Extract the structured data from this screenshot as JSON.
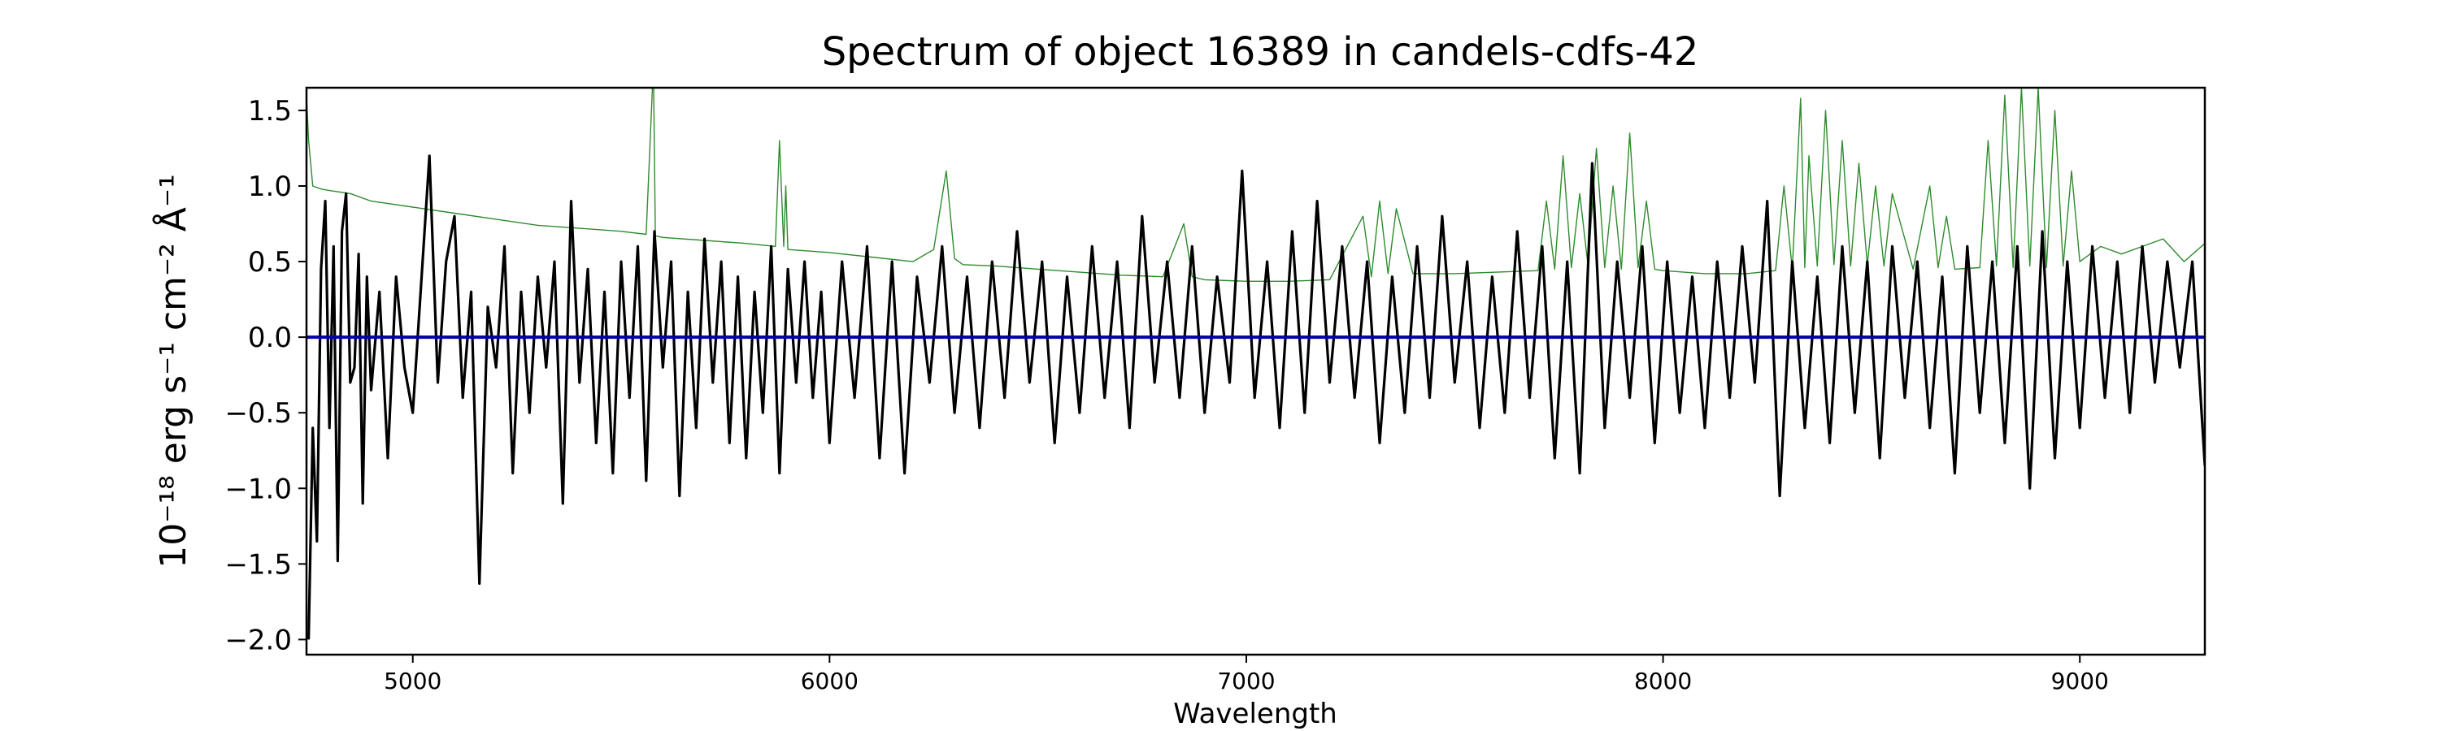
{
  "chart_data": {
    "type": "line",
    "title": "Spectrum of object 16389 in candels-cdfs-42",
    "xlabel": "Wavelength",
    "ylabel": "10⁻¹⁸ erg s⁻¹ cm⁻² Å⁻¹",
    "xlim": [
      4745,
      9300
    ],
    "ylim": [
      -2.1,
      1.65
    ],
    "xticks": [
      5000,
      6000,
      7000,
      8000,
      9000
    ],
    "yticks": [
      -2.0,
      -1.5,
      -1.0,
      -0.5,
      0.0,
      0.5,
      1.0,
      1.5
    ],
    "xtick_labels": [
      "5000",
      "6000",
      "7000",
      "8000",
      "9000"
    ],
    "ytick_labels": [
      "−2.0",
      "−1.5",
      "−1.0",
      "−0.5",
      "0.0",
      "0.5",
      "1.0",
      "1.5"
    ],
    "grid": false,
    "colors": {
      "flux": "#000000",
      "error": "#2e8b2e",
      "zero": "#0000aa"
    },
    "series": [
      {
        "role": "flux",
        "x": [
          4750,
          4760,
          4770,
          4780,
          4790,
          4800,
          4810,
          4820,
          4830,
          4840,
          4850,
          4860,
          4870,
          4880,
          4890,
          4900,
          4920,
          4940,
          4960,
          4980,
          5000,
          5020,
          5040,
          5060,
          5080,
          5100,
          5120,
          5140,
          5160,
          5180,
          5200,
          5220,
          5240,
          5260,
          5280,
          5300,
          5320,
          5340,
          5360,
          5380,
          5400,
          5420,
          5440,
          5460,
          5480,
          5500,
          5520,
          5540,
          5560,
          5580,
          5600,
          5620,
          5640,
          5660,
          5680,
          5700,
          5720,
          5740,
          5760,
          5780,
          5800,
          5820,
          5840,
          5860,
          5880,
          5900,
          5920,
          5940,
          5960,
          5980,
          6000,
          6030,
          6060,
          6090,
          6120,
          6150,
          6180,
          6210,
          6240,
          6270,
          6300,
          6330,
          6360,
          6390,
          6420,
          6450,
          6480,
          6510,
          6540,
          6570,
          6600,
          6630,
          6660,
          6690,
          6720,
          6750,
          6780,
          6810,
          6840,
          6870,
          6900,
          6930,
          6960,
          6990,
          7020,
          7050,
          7080,
          7110,
          7140,
          7170,
          7200,
          7230,
          7260,
          7290,
          7320,
          7350,
          7380,
          7410,
          7440,
          7470,
          7500,
          7530,
          7560,
          7590,
          7620,
          7650,
          7680,
          7710,
          7740,
          7770,
          7800,
          7830,
          7860,
          7890,
          7920,
          7950,
          7980,
          8010,
          8040,
          8070,
          8100,
          8130,
          8160,
          8190,
          8220,
          8250,
          8280,
          8310,
          8340,
          8370,
          8400,
          8430,
          8460,
          8490,
          8520,
          8550,
          8580,
          8610,
          8640,
          8670,
          8700,
          8730,
          8760,
          8790,
          8820,
          8850,
          8880,
          8910,
          8940,
          8970,
          9000,
          9030,
          9060,
          9090,
          9120,
          9150,
          9180,
          9210,
          9240,
          9270,
          9300
        ],
        "y": [
          -2.0,
          -0.6,
          -1.35,
          0.45,
          0.9,
          -0.6,
          0.6,
          -1.48,
          0.7,
          0.95,
          -0.3,
          -0.2,
          0.55,
          -1.1,
          0.4,
          -0.35,
          0.3,
          -0.8,
          0.4,
          -0.2,
          -0.5,
          0.35,
          1.2,
          -0.3,
          0.5,
          0.8,
          -0.4,
          0.3,
          -1.63,
          0.2,
          -0.2,
          0.6,
          -0.9,
          0.3,
          -0.5,
          0.4,
          -0.2,
          0.5,
          -1.1,
          0.9,
          -0.3,
          0.45,
          -0.7,
          0.3,
          -0.9,
          0.5,
          -0.4,
          0.6,
          -0.95,
          0.7,
          -0.2,
          0.5,
          -1.05,
          0.3,
          -0.6,
          0.65,
          -0.3,
          0.5,
          -0.7,
          0.4,
          -0.8,
          0.3,
          -0.5,
          0.6,
          -0.9,
          0.45,
          -0.3,
          0.5,
          -0.4,
          0.3,
          -0.7,
          0.5,
          -0.4,
          0.6,
          -0.8,
          0.5,
          -0.9,
          0.4,
          -0.3,
          0.6,
          -0.5,
          0.4,
          -0.6,
          0.5,
          -0.4,
          0.7,
          -0.3,
          0.5,
          -0.7,
          0.4,
          -0.5,
          0.6,
          -0.4,
          0.5,
          -0.6,
          0.8,
          -0.3,
          0.5,
          -0.4,
          0.6,
          -0.5,
          0.4,
          -0.3,
          1.1,
          -0.4,
          0.5,
          -0.6,
          0.7,
          -0.5,
          0.9,
          -0.3,
          0.6,
          -0.4,
          0.5,
          -0.7,
          0.4,
          -0.5,
          0.6,
          -0.4,
          0.8,
          -0.3,
          0.5,
          -0.6,
          0.4,
          -0.5,
          0.7,
          -0.4,
          0.6,
          -0.8,
          0.5,
          -0.9,
          1.15,
          -0.6,
          0.5,
          -0.4,
          0.6,
          -0.7,
          0.5,
          -0.5,
          0.4,
          -0.6,
          0.5,
          -0.4,
          0.6,
          -0.3,
          0.9,
          -1.05,
          0.5,
          -0.6,
          0.4,
          -0.7,
          0.6,
          -0.5,
          0.5,
          -0.8,
          0.6,
          -0.4,
          0.5,
          -0.6,
          0.4,
          -0.9,
          0.6,
          -0.5,
          0.5,
          -0.7,
          0.6,
          -1.0,
          0.7,
          -0.8,
          0.5,
          -0.6,
          0.6,
          -0.4,
          0.5,
          -0.5,
          0.6,
          -0.3,
          0.5,
          -0.2,
          0.5,
          -0.85
        ]
      },
      {
        "role": "error",
        "x": [
          4745,
          4750,
          4760,
          4780,
          4800,
          4850,
          4900,
          5000,
          5100,
          5200,
          5300,
          5400,
          5500,
          5560,
          5575,
          5578,
          5582,
          5600,
          5700,
          5800,
          5870,
          5880,
          5890,
          5895,
          5900,
          6000,
          6100,
          6200,
          6250,
          6280,
          6300,
          6320,
          6400,
          6500,
          6600,
          6700,
          6800,
          6850,
          6870,
          6900,
          7000,
          7100,
          7200,
          7280,
          7300,
          7320,
          7340,
          7360,
          7400,
          7500,
          7600,
          7700,
          7720,
          7740,
          7760,
          7780,
          7800,
          7820,
          7840,
          7860,
          7880,
          7900,
          7920,
          7940,
          7960,
          7980,
          8000,
          8100,
          8200,
          8270,
          8290,
          8310,
          8330,
          8340,
          8350,
          8370,
          8390,
          8410,
          8430,
          8450,
          8470,
          8490,
          8510,
          8530,
          8550,
          8600,
          8640,
          8660,
          8680,
          8700,
          8760,
          8780,
          8800,
          8820,
          8840,
          8860,
          8880,
          8900,
          8920,
          8940,
          8960,
          8980,
          9000,
          9050,
          9100,
          9150,
          9200,
          9250,
          9300
        ],
        "y": [
          1.6,
          1.3,
          1.0,
          0.98,
          0.97,
          0.95,
          0.9,
          0.86,
          0.82,
          0.78,
          0.74,
          0.72,
          0.7,
          0.68,
          1.65,
          1.65,
          0.67,
          0.66,
          0.64,
          0.62,
          0.6,
          1.3,
          0.6,
          1.0,
          0.58,
          0.56,
          0.53,
          0.5,
          0.58,
          1.1,
          0.52,
          0.48,
          0.47,
          0.45,
          0.43,
          0.41,
          0.4,
          0.75,
          0.4,
          0.38,
          0.37,
          0.37,
          0.38,
          0.8,
          0.4,
          0.9,
          0.42,
          0.85,
          0.42,
          0.42,
          0.43,
          0.44,
          0.9,
          0.45,
          1.2,
          0.46,
          0.95,
          0.47,
          1.25,
          0.46,
          1.0,
          0.45,
          1.35,
          0.46,
          0.9,
          0.45,
          0.44,
          0.42,
          0.42,
          0.44,
          1.0,
          0.45,
          1.58,
          0.46,
          1.2,
          0.47,
          1.5,
          0.48,
          1.3,
          0.47,
          1.15,
          0.48,
          1.0,
          0.47,
          0.95,
          0.45,
          1.0,
          0.46,
          0.8,
          0.45,
          0.46,
          1.3,
          0.47,
          1.6,
          0.46,
          1.65,
          0.47,
          1.65,
          0.46,
          1.5,
          0.47,
          1.1,
          0.5,
          0.6,
          0.55,
          0.6,
          0.65,
          0.5,
          0.62
        ]
      },
      {
        "role": "zero",
        "x": [
          4745,
          9300
        ],
        "y": [
          0.0,
          0.0
        ]
      }
    ]
  }
}
